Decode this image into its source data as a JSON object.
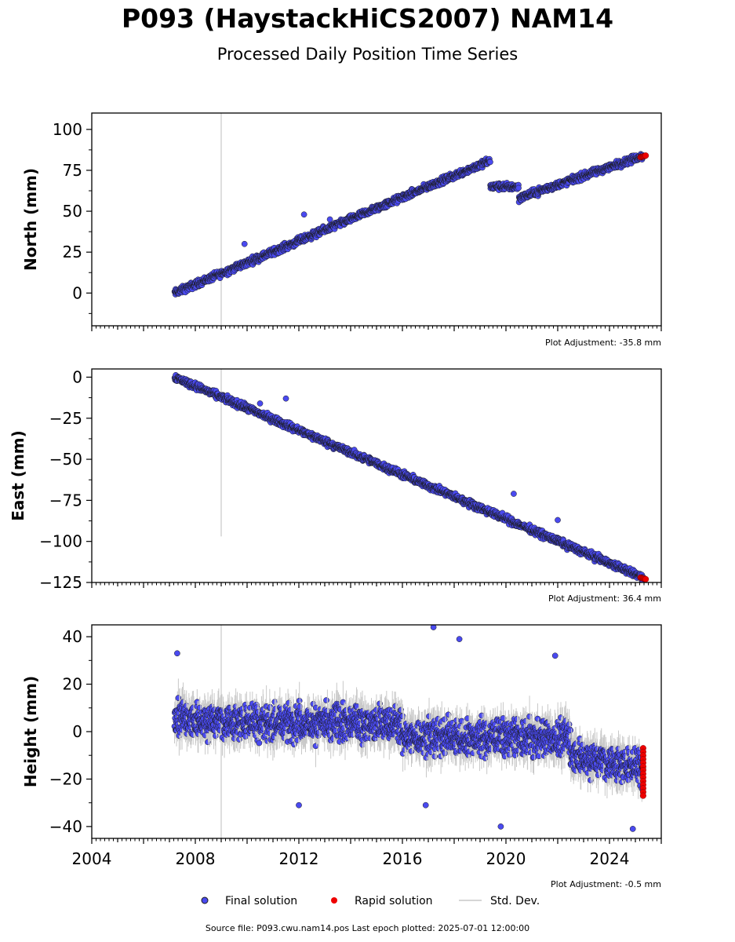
{
  "title": "P093 (HaystackHiCS2007) NAM14",
  "subtitle": "Processed Daily Position Time Series",
  "footer": "Source file: P093.cwu.nam14.pos  Last epoch plotted: 2025-07-01 12:00:00",
  "legend": {
    "final": "Final solution",
    "rapid": "Rapid solution",
    "std": "Std. Dev."
  },
  "colors": {
    "final": "#4a4af0",
    "rapid": "#ee0000",
    "std": "#c8c8c8",
    "edge": "#1a1a1a"
  },
  "chart_data": [
    {
      "type": "scatter",
      "ylabel": "North (mm)",
      "ylim": [
        -20,
        110
      ],
      "yticks": [
        0,
        25,
        50,
        75,
        100
      ],
      "xlim": [
        2004.0,
        2026.0
      ],
      "adjustment": "Plot Adjustment: -35.8 mm",
      "trend_segments": [
        {
          "x": [
            2007.2,
            2019.4
          ],
          "y": [
            0,
            81
          ]
        },
        {
          "x": [
            2019.4,
            2020.5
          ],
          "y": [
            65,
            65
          ]
        },
        {
          "x": [
            2020.5,
            2025.3
          ],
          "y": [
            58,
            84
          ]
        }
      ],
      "rapid": {
        "x": [
          2025.2,
          2025.4
        ],
        "y": [
          83,
          84
        ]
      },
      "outliers": [
        {
          "x": 2009.9,
          "y": 30
        },
        {
          "x": 2012.2,
          "y": 48
        },
        {
          "x": 2013.2,
          "y": 45
        }
      ]
    },
    {
      "type": "scatter",
      "ylabel": "East (mm)",
      "ylim": [
        -125,
        5
      ],
      "yticks": [
        0,
        -25,
        -50,
        -75,
        -100,
        -125
      ],
      "xlim": [
        2004.0,
        2026.0
      ],
      "adjustment": "Plot Adjustment: 36.4 mm",
      "trend_segments": [
        {
          "x": [
            2007.2,
            2025.3
          ],
          "y": [
            0,
            -122
          ]
        }
      ],
      "rapid": {
        "x": [
          2025.2,
          2025.4
        ],
        "y": [
          -122,
          -123
        ]
      },
      "outliers": [
        {
          "x": 2010.5,
          "y": -16
        },
        {
          "x": 2011.5,
          "y": -13
        },
        {
          "x": 2020.3,
          "y": -71
        },
        {
          "x": 2022.0,
          "y": -87
        }
      ]
    },
    {
      "type": "scatter",
      "ylabel": "Height (mm)",
      "ylim": [
        -45,
        45
      ],
      "yticks": [
        40,
        20,
        0,
        -20,
        -40
      ],
      "xlim": [
        2004.0,
        2026.0
      ],
      "xticks": [
        2004,
        2008,
        2012,
        2016,
        2020,
        2024
      ],
      "adjustment": "Plot Adjustment: -0.5 mm",
      "trend_segments": [
        {
          "x": [
            2007.2,
            2016.0
          ],
          "y": [
            5,
            3
          ]
        },
        {
          "x": [
            2016.0,
            2022.5
          ],
          "y": [
            -2,
            -3
          ]
        },
        {
          "x": [
            2022.5,
            2025.3
          ],
          "y": [
            -10,
            -15
          ]
        }
      ],
      "rapid": {
        "x": [
          2025.2,
          2025.4
        ],
        "y": [
          -7,
          -27
        ]
      },
      "outliers": [
        {
          "x": 2007.3,
          "y": 33
        },
        {
          "x": 2017.2,
          "y": 44
        },
        {
          "x": 2018.2,
          "y": 39
        },
        {
          "x": 2021.9,
          "y": 32
        },
        {
          "x": 2012.0,
          "y": -31
        },
        {
          "x": 2019.8,
          "y": -40
        },
        {
          "x": 2024.9,
          "y": -41
        },
        {
          "x": 2016.9,
          "y": -31
        }
      ]
    }
  ]
}
